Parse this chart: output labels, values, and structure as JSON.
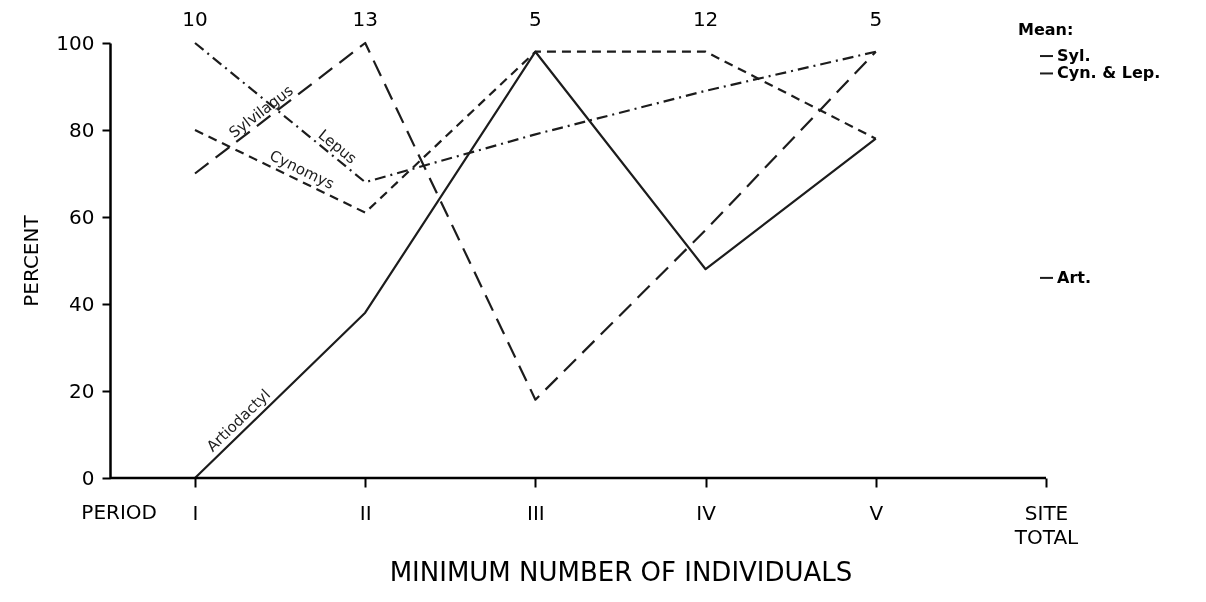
{
  "chart_data": {
    "type": "line",
    "xlabel": "MINIMUM NUMBER OF INDIVIDUALS",
    "ylabel": "PERCENT",
    "categories": [
      "I",
      "II",
      "III",
      "IV",
      "V",
      "SITE TOTAL"
    ],
    "series": [
      {
        "name": "Sylvilagus",
        "color": "#1c1c1c",
        "line_style": "longdash",
        "values": [
          70,
          100,
          18,
          57,
          98,
          null
        ]
      },
      {
        "name": "Lepus",
        "color": "#1c1c1c",
        "line_style": "dashdot",
        "values": [
          100,
          68,
          79,
          89,
          98,
          null
        ]
      },
      {
        "name": "Cynomys",
        "color": "#1c1c1c",
        "line_style": "dashed",
        "values": [
          80,
          61,
          98,
          98,
          78,
          null
        ]
      },
      {
        "name": "Artiodactyl",
        "color": "#1c1c1c",
        "line_style": "solid",
        "values": [
          0,
          38,
          98,
          48,
          78,
          null
        ]
      }
    ],
    "ylim": [
      0,
      100
    ],
    "yticks": [
      0,
      20,
      40,
      60,
      80,
      100
    ],
    "grid": false,
    "legend": false,
    "marker": "none",
    "ref_lines": [
      {
        "axis": "y",
        "value": 97,
        "label": "Syl.",
        "color": "#1c1c1c"
      },
      {
        "axis": "y",
        "value": 93,
        "label": "Cyn. & Lep.",
        "color": "#1c1c1c"
      },
      {
        "axis": "y",
        "value": 46,
        "label": "Art.",
        "color": "#1c1c1c"
      }
    ],
    "annotations": [
      "PERIOD",
      "Mean:",
      "10",
      "13",
      "5",
      "12",
      "5"
    ]
  }
}
